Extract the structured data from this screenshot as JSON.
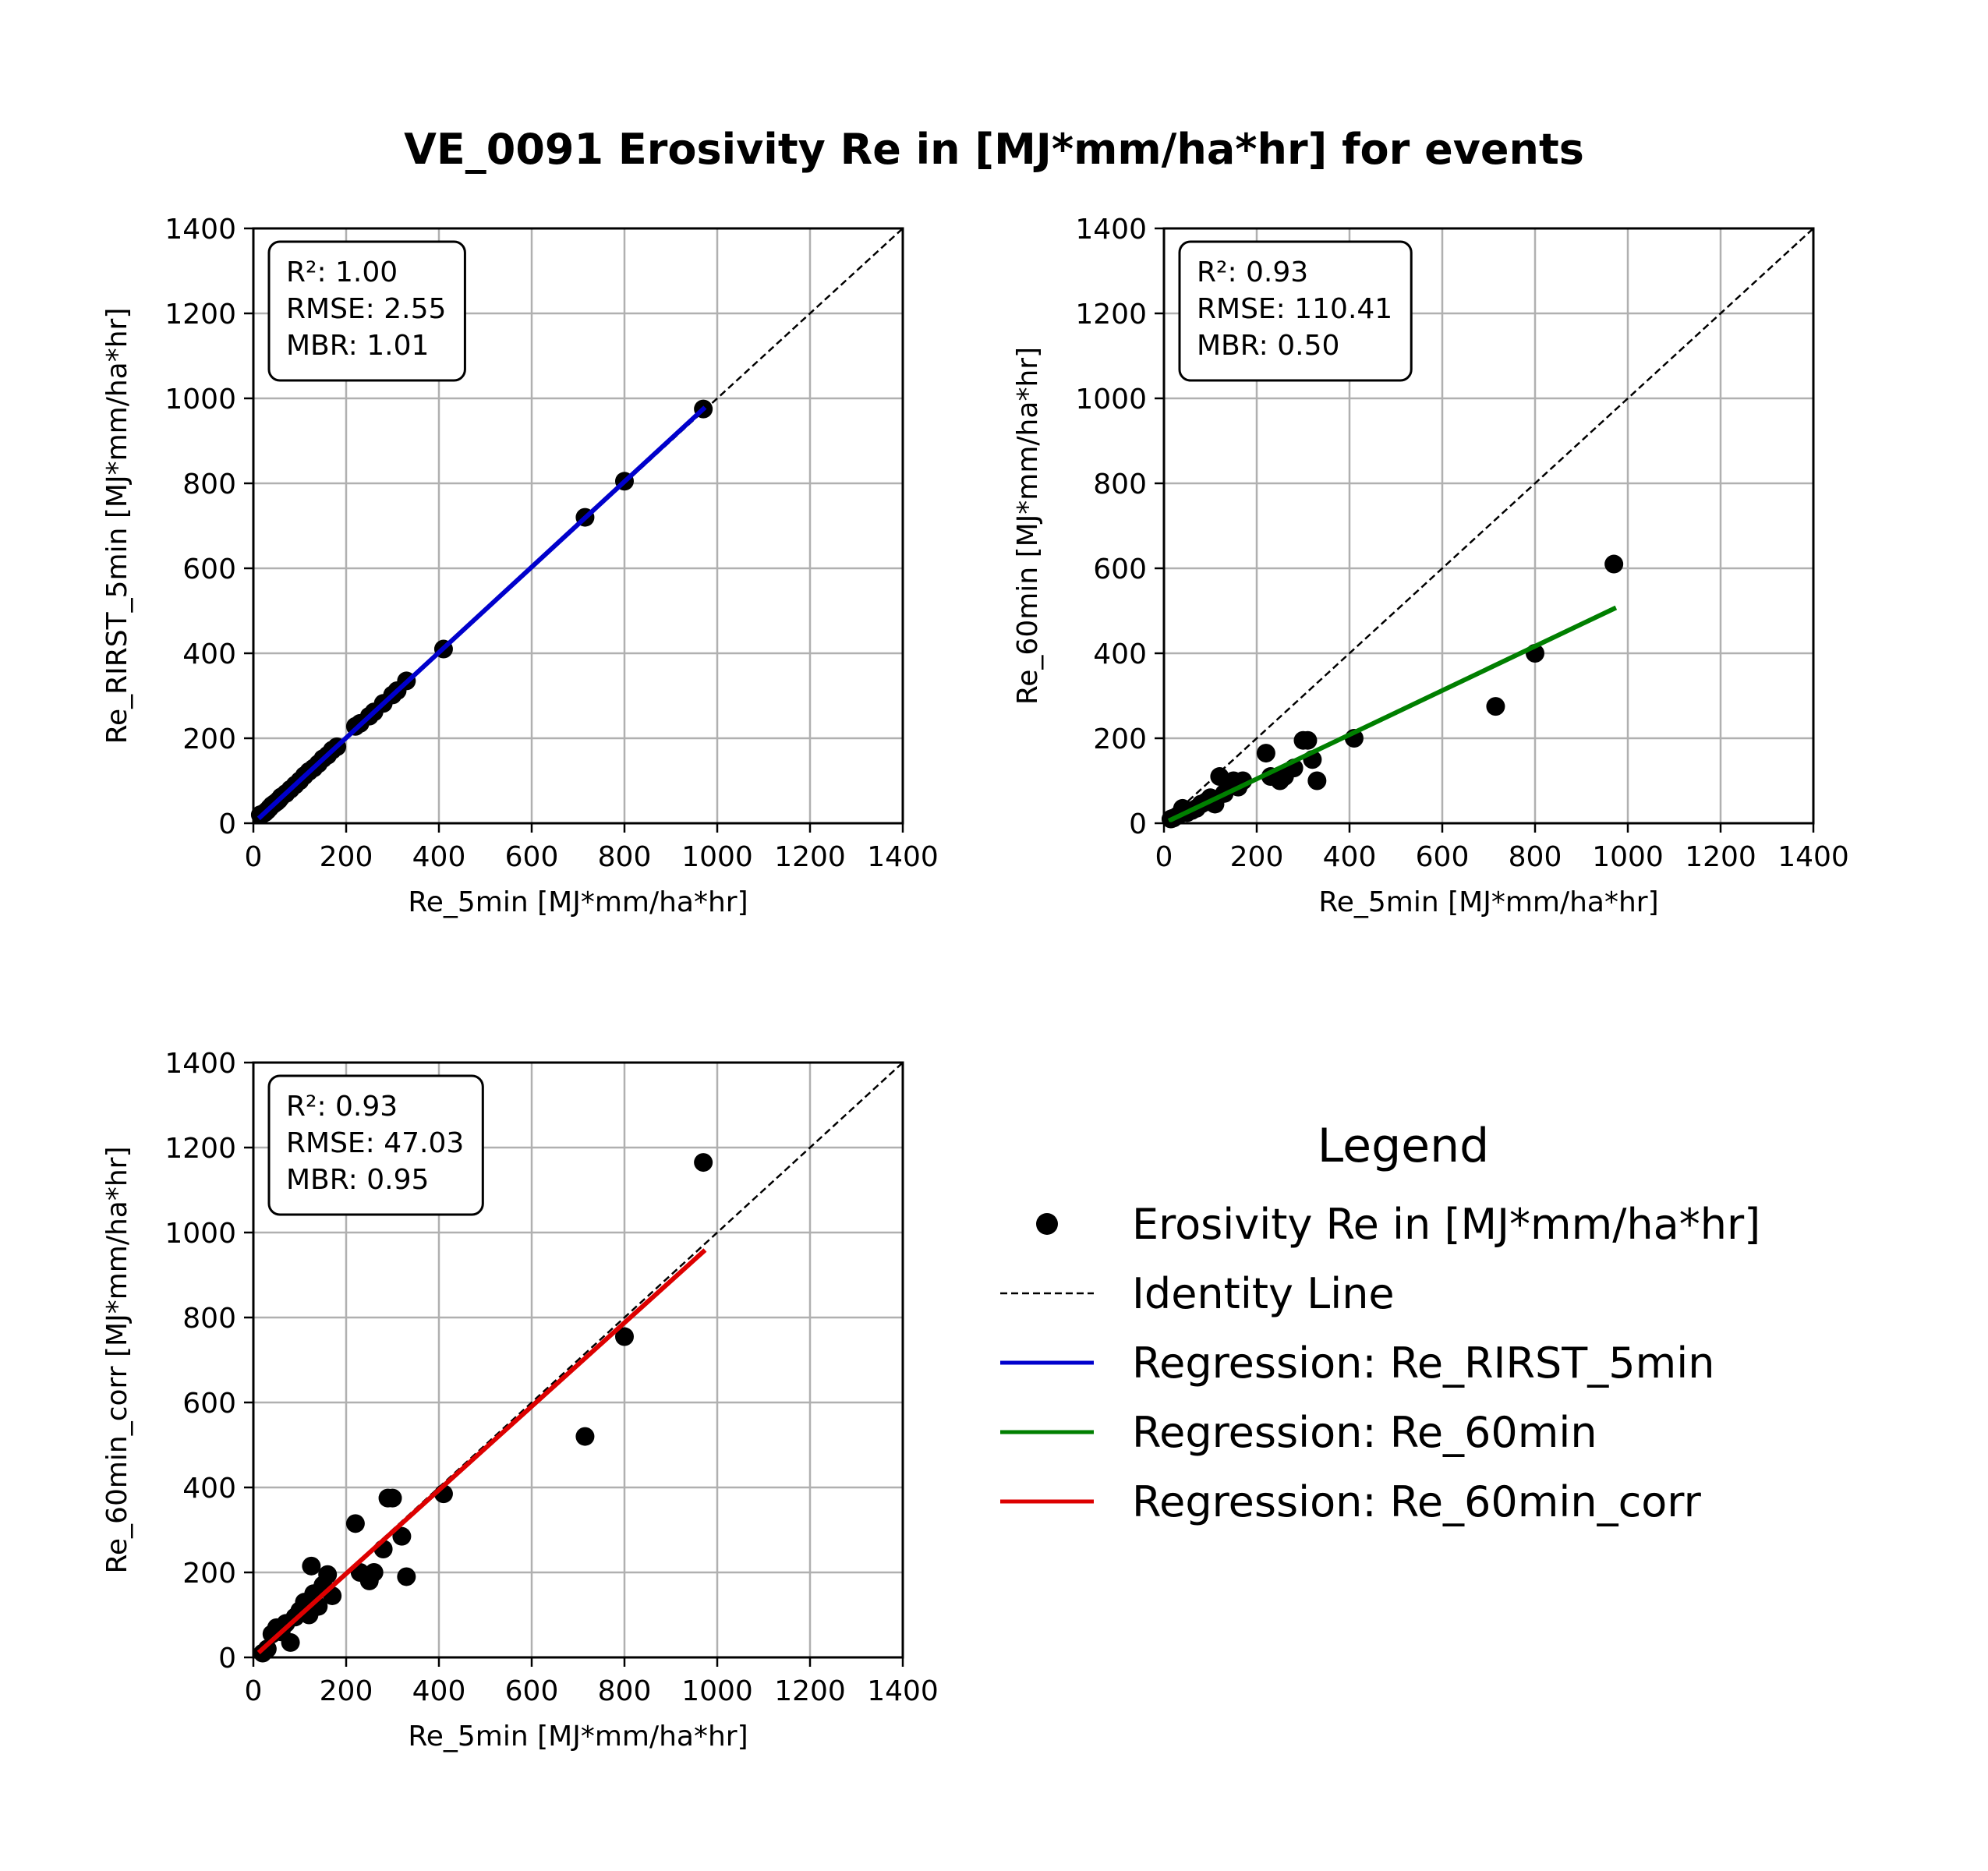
{
  "suptitle": "VE_0091 Erosivity Re in [MJ*mm/ha*hr] for events",
  "colors": {
    "points": "#000000",
    "identity": "#000000",
    "grid": "#b0b0b0",
    "reg_rirst": "#0000cc",
    "reg_60": "#007f00",
    "reg_60corr": "#dd0000"
  },
  "legend": {
    "title": "Legend",
    "items": [
      {
        "label": "Erosivity Re in [MJ*mm/ha*hr]",
        "kind": "marker",
        "color": "#000000"
      },
      {
        "label": "Identity Line",
        "kind": "dashed",
        "color": "#000000"
      },
      {
        "label": "Regression: Re_RIRST_5min",
        "kind": "line",
        "color": "#0000cc"
      },
      {
        "label": "Regression: Re_60min",
        "kind": "line",
        "color": "#007f00"
      },
      {
        "label": "Regression: Re_60min_corr",
        "kind": "line",
        "color": "#dd0000"
      }
    ]
  },
  "chart_data": [
    {
      "type": "scatter",
      "xlabel": "Re_5min [MJ*mm/ha*hr]",
      "ylabel": "Re_RIRST_5min [MJ*mm/ha*hr]",
      "xlim": [
        0,
        1400
      ],
      "ylim": [
        0,
        1400
      ],
      "ticks": [
        0,
        200,
        400,
        600,
        800,
        1000,
        1200,
        1400
      ],
      "grid": true,
      "stats": [
        "R²: 1.00",
        "RMSE: 2.55",
        "MBR: 1.01"
      ],
      "regression": {
        "x0": 15,
        "y0": 15,
        "x1": 970,
        "y1": 975,
        "color": "#0000cc"
      },
      "points": [
        [
          15,
          20
        ],
        [
          20,
          22
        ],
        [
          25,
          25
        ],
        [
          30,
          30
        ],
        [
          35,
          36
        ],
        [
          40,
          42
        ],
        [
          45,
          46
        ],
        [
          50,
          50
        ],
        [
          55,
          55
        ],
        [
          60,
          62
        ],
        [
          70,
          70
        ],
        [
          80,
          80
        ],
        [
          90,
          90
        ],
        [
          100,
          100
        ],
        [
          110,
          112
        ],
        [
          120,
          122
        ],
        [
          130,
          130
        ],
        [
          140,
          140
        ],
        [
          150,
          152
        ],
        [
          160,
          160
        ],
        [
          170,
          172
        ],
        [
          180,
          180
        ],
        [
          220,
          228
        ],
        [
          230,
          235
        ],
        [
          250,
          252
        ],
        [
          260,
          262
        ],
        [
          280,
          282
        ],
        [
          300,
          302
        ],
        [
          310,
          312
        ],
        [
          330,
          335
        ],
        [
          410,
          410
        ],
        [
          715,
          720
        ],
        [
          800,
          805
        ],
        [
          970,
          975
        ]
      ]
    },
    {
      "type": "scatter",
      "xlabel": "Re_5min [MJ*mm/ha*hr]",
      "ylabel": "Re_60min [MJ*mm/ha*hr]",
      "xlim": [
        0,
        1400
      ],
      "ylim": [
        0,
        1400
      ],
      "ticks": [
        0,
        200,
        400,
        600,
        800,
        1000,
        1200,
        1400
      ],
      "grid": true,
      "stats": [
        "R²: 0.93",
        "RMSE: 110.41",
        "MBR: 0.50"
      ],
      "regression": {
        "x0": 15,
        "y0": 8,
        "x1": 970,
        "y1": 505,
        "color": "#007f00"
      },
      "points": [
        [
          15,
          10
        ],
        [
          20,
          12
        ],
        [
          30,
          18
        ],
        [
          40,
          35
        ],
        [
          50,
          25
        ],
        [
          60,
          30
        ],
        [
          70,
          35
        ],
        [
          80,
          45
        ],
        [
          90,
          50
        ],
        [
          100,
          60
        ],
        [
          110,
          45
        ],
        [
          120,
          110
        ],
        [
          130,
          70
        ],
        [
          140,
          90
        ],
        [
          150,
          100
        ],
        [
          160,
          85
        ],
        [
          170,
          100
        ],
        [
          220,
          165
        ],
        [
          230,
          110
        ],
        [
          250,
          100
        ],
        [
          260,
          110
        ],
        [
          280,
          130
        ],
        [
          300,
          195
        ],
        [
          310,
          195
        ],
        [
          320,
          150
        ],
        [
          330,
          100
        ],
        [
          410,
          200
        ],
        [
          715,
          275
        ],
        [
          800,
          400
        ],
        [
          970,
          610
        ]
      ]
    },
    {
      "type": "scatter",
      "xlabel": "Re_5min [MJ*mm/ha*hr]",
      "ylabel": "Re_60min_corr [MJ*mm/ha*hr]",
      "xlim": [
        0,
        1400
      ],
      "ylim": [
        0,
        1400
      ],
      "ticks": [
        0,
        200,
        400,
        600,
        800,
        1000,
        1200,
        1400
      ],
      "grid": true,
      "stats": [
        "R²: 0.93",
        "RMSE: 47.03",
        "MBR: 0.95"
      ],
      "regression": {
        "x0": 15,
        "y0": 15,
        "x1": 970,
        "y1": 955,
        "color": "#dd0000"
      },
      "points": [
        [
          20,
          10
        ],
        [
          30,
          20
        ],
        [
          40,
          55
        ],
        [
          50,
          70
        ],
        [
          60,
          60
        ],
        [
          70,
          80
        ],
        [
          80,
          35
        ],
        [
          90,
          95
        ],
        [
          100,
          110
        ],
        [
          110,
          130
        ],
        [
          120,
          100
        ],
        [
          125,
          215
        ],
        [
          130,
          150
        ],
        [
          140,
          120
        ],
        [
          150,
          170
        ],
        [
          160,
          195
        ],
        [
          170,
          145
        ],
        [
          220,
          315
        ],
        [
          230,
          200
        ],
        [
          250,
          180
        ],
        [
          260,
          200
        ],
        [
          280,
          255
        ],
        [
          290,
          375
        ],
        [
          300,
          375
        ],
        [
          320,
          285
        ],
        [
          330,
          190
        ],
        [
          410,
          385
        ],
        [
          715,
          520
        ],
        [
          800,
          755
        ],
        [
          970,
          1165
        ]
      ]
    }
  ]
}
